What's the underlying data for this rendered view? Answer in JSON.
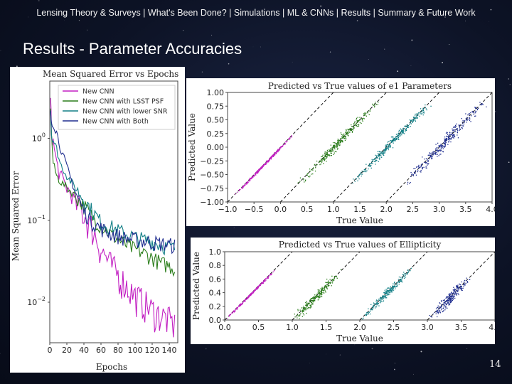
{
  "nav": {
    "items": [
      "Lensing Theory & Surveys",
      "What's Been Done?",
      "Simulations",
      "ML & CNNs",
      "Results",
      "Summary & Future Work"
    ],
    "separator": " | ",
    "active": "Results"
  },
  "slide": {
    "title": "Results - Parameter Accuracies",
    "page_number": "14"
  },
  "colors": {
    "new_cnn": "#c21fc2",
    "lsst_psf": "#2a7d1a",
    "lower_snr": "#127f86",
    "both": "#1f2d8f",
    "background": "#0d1326"
  },
  "chart_data": [
    {
      "type": "line",
      "title": "Mean Squared Error vs Epochs",
      "xlabel": "Epochs",
      "ylabel": "Mean Squared Error",
      "x_ticks": [
        "0",
        "20",
        "40",
        "60",
        "80",
        "100",
        "120",
        "140"
      ],
      "y_scale": "log",
      "y_ticks": [
        "10^0",
        "10^-1",
        "10^-2"
      ],
      "xlim": [
        0,
        150
      ],
      "ylim": [
        0.0032,
        5
      ],
      "legend_position": "top-right",
      "series": [
        {
          "name": "New CNN",
          "color": "#c21fc2",
          "x": [
            1,
            2,
            4,
            8,
            12,
            20,
            30,
            40,
            50,
            60,
            70,
            80,
            90,
            100,
            110,
            120,
            130,
            140,
            148
          ],
          "y": [
            3.0,
            1.2,
            0.9,
            0.5,
            0.35,
            0.25,
            0.17,
            0.12,
            0.08,
            0.045,
            0.03,
            0.022,
            0.016,
            0.012,
            0.01,
            0.008,
            0.007,
            0.006,
            0.005
          ]
        },
        {
          "name": "New CNN with LSST PSF",
          "color": "#2a7d1a",
          "x": [
            1,
            2,
            4,
            8,
            12,
            20,
            30,
            40,
            50,
            60,
            70,
            80,
            90,
            100,
            110,
            120,
            130,
            140,
            148
          ],
          "y": [
            2.5,
            1.1,
            0.5,
            0.35,
            0.3,
            0.25,
            0.2,
            0.15,
            0.11,
            0.085,
            0.07,
            0.058,
            0.05,
            0.044,
            0.04,
            0.035,
            0.03,
            0.028,
            0.025
          ]
        },
        {
          "name": "New CNN with lower SNR",
          "color": "#127f86",
          "x": [
            1,
            2,
            4,
            8,
            12,
            20,
            30,
            40,
            50,
            60,
            70,
            80,
            90,
            100,
            110,
            120,
            130,
            140,
            148
          ],
          "y": [
            2.2,
            1.1,
            0.95,
            0.75,
            0.5,
            0.35,
            0.25,
            0.18,
            0.13,
            0.095,
            0.085,
            0.075,
            0.068,
            0.062,
            0.058,
            0.055,
            0.05,
            0.047,
            0.045
          ]
        },
        {
          "name": "New CNN with Both",
          "color": "#1f2d8f",
          "x": [
            1,
            2,
            4,
            8,
            12,
            20,
            30,
            40,
            50,
            60,
            70,
            80,
            90,
            100,
            110,
            120,
            130,
            140,
            148
          ],
          "y": [
            2.0,
            1.6,
            1.5,
            1.2,
            0.8,
            0.45,
            0.22,
            0.13,
            0.095,
            0.08,
            0.07,
            0.065,
            0.06,
            0.058,
            0.056,
            0.054,
            0.052,
            0.05,
            0.05
          ]
        }
      ]
    },
    {
      "type": "scatter",
      "title": "Predicted vs True values of e1 Parameters",
      "xlabel": "True Value",
      "ylabel": "Predicted Value",
      "x_ticks": [
        "−1.0",
        "−0.5",
        "0.0",
        "0.5",
        "1.0",
        "1.5",
        "2.0",
        "2.5",
        "3.0",
        "3.5",
        "4.0"
      ],
      "y_ticks": [
        "1.00",
        "0.75",
        "0.50",
        "0.25",
        "0.00",
        "−0.25",
        "−0.50",
        "−0.75",
        "−1.00"
      ],
      "xlim": [
        -1.0,
        4.0
      ],
      "ylim": [
        -1.0,
        1.0
      ],
      "series": [
        {
          "name": "New CNN",
          "color": "#c21fc2",
          "x_range": [
            -0.9,
            0.25
          ],
          "offset": 0,
          "spread": 0.02
        },
        {
          "name": "New CNN with LSST PSF",
          "color": "#2a7d1a",
          "x_range": [
            0.3,
            1.9
          ],
          "offset": 1,
          "spread": 0.09
        },
        {
          "name": "New CNN with lower SNR",
          "color": "#127f86",
          "x_range": [
            1.3,
            2.9
          ],
          "offset": 2,
          "spread": 0.08
        },
        {
          "name": "New CNN with Both",
          "color": "#1f2d8f",
          "x_range": [
            2.3,
            3.9
          ],
          "offset": 3,
          "spread": 0.12
        }
      ]
    },
    {
      "type": "scatter",
      "title": "Predicted vs True values of Ellipticity",
      "xlabel": "True Value",
      "ylabel": "Predicted Value",
      "x_ticks": [
        "0.0",
        "0.5",
        "1.0",
        "1.5",
        "2.0",
        "2.5",
        "3.0",
        "3.5",
        "4.0"
      ],
      "y_ticks": [
        "1.0",
        "0.8",
        "0.6",
        "0.4",
        "0.2",
        "0.0"
      ],
      "xlim": [
        0.0,
        4.0
      ],
      "ylim": [
        0.0,
        1.0
      ],
      "series": [
        {
          "name": "New CNN",
          "color": "#c21fc2",
          "x_range": [
            0.0,
            0.75
          ],
          "offset": 0,
          "spread": 0.015
        },
        {
          "name": "New CNN with LSST PSF",
          "color": "#2a7d1a",
          "x_range": [
            1.0,
            1.75
          ],
          "offset": 1,
          "spread": 0.07
        },
        {
          "name": "New CNN with lower SNR",
          "color": "#127f86",
          "x_range": [
            2.0,
            2.8
          ],
          "offset": 2,
          "spread": 0.06
        },
        {
          "name": "New CNN with Both",
          "color": "#1f2d8f",
          "x_range": [
            3.0,
            3.65
          ],
          "offset": 3,
          "spread": 0.08
        }
      ]
    }
  ]
}
